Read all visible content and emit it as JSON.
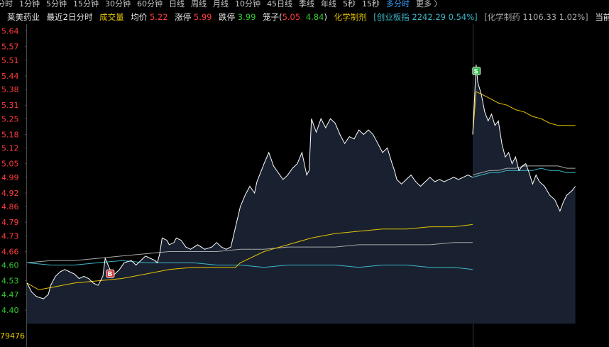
{
  "tabs": [
    {
      "label": "分时",
      "active": false
    },
    {
      "label": "1分钟",
      "active": false
    },
    {
      "label": "5分钟",
      "active": false
    },
    {
      "label": "15分钟",
      "active": false
    },
    {
      "label": "30分钟",
      "active": false
    },
    {
      "label": "60分钟",
      "active": false
    },
    {
      "label": "日线",
      "active": false
    },
    {
      "label": "周线",
      "active": false
    },
    {
      "label": "月线",
      "active": false
    },
    {
      "label": "10分钟",
      "active": false
    },
    {
      "label": "45日线",
      "active": false
    },
    {
      "label": "季线",
      "active": false
    },
    {
      "label": "年线",
      "active": false
    },
    {
      "label": "5秒",
      "active": false
    },
    {
      "label": "15秒",
      "active": false
    },
    {
      "label": "多分时",
      "active": true
    },
    {
      "label": "更多 〉",
      "active": false
    }
  ],
  "info": {
    "stock_name": "莱美药业",
    "period": "最近2日分时",
    "volume_label": "成交量",
    "avg_label": "均价",
    "avg_value": "5.22",
    "limit_up_label": "涨停",
    "limit_up_value": "5.99",
    "limit_down_label": "跌停",
    "limit_down_value": "3.99",
    "cage_label": "笼子(",
    "cage_high": "5.05",
    "cage_low": "4.84",
    "cage_close": ")",
    "sector": "化学制剂",
    "index_text": "[创业板指 2242.29 0.54%]",
    "sector_text": "[化学制药 1106.33 1.02%]",
    "account_label": "当前账户"
  },
  "chart_data": {
    "type": "line",
    "title": "",
    "xlabel": "",
    "ylabel": "",
    "ylim": [
      4.34,
      5.67
    ],
    "prev_close": 4.61,
    "yticks": [
      "5.64",
      "5.57",
      "5.51",
      "5.44",
      "5.38",
      "5.31",
      "5.25",
      "5.18",
      "5.12",
      "5.05",
      "4.99",
      "4.92",
      "4.86",
      "4.79",
      "4.73",
      "4.66",
      "4.60",
      "4.53",
      "4.47",
      "4.40"
    ],
    "bottom_label": "79476",
    "grid": false,
    "legend": "none",
    "colors": {
      "price": "#ffffff",
      "avg": "#e6c300",
      "index": "#3bb8c9",
      "sector": "#a8a8a8",
      "up": "#ff3c3c",
      "down": "#34c934",
      "flat": "#e8e8e8",
      "fill": "#1a2333"
    },
    "days": [
      {
        "price": [
          [
            0,
            4.52
          ],
          [
            0.02,
            4.48
          ],
          [
            0.04,
            4.46
          ],
          [
            0.07,
            4.45
          ],
          [
            0.09,
            4.47
          ],
          [
            0.1,
            4.51
          ],
          [
            0.12,
            4.55
          ],
          [
            0.14,
            4.57
          ],
          [
            0.16,
            4.58
          ],
          [
            0.18,
            4.57
          ],
          [
            0.2,
            4.56
          ],
          [
            0.22,
            4.54
          ],
          [
            0.24,
            4.55
          ],
          [
            0.26,
            4.54
          ],
          [
            0.28,
            4.52
          ],
          [
            0.3,
            4.51
          ],
          [
            0.32,
            4.55
          ],
          [
            0.33,
            4.63
          ],
          [
            0.35,
            4.58
          ],
          [
            0.37,
            4.56
          ],
          [
            0.39,
            4.58
          ],
          [
            0.41,
            4.61
          ],
          [
            0.44,
            4.62
          ],
          [
            0.46,
            4.6
          ],
          [
            0.48,
            4.62
          ],
          [
            0.5,
            4.64
          ],
          [
            0.52,
            4.63
          ],
          [
            0.54,
            4.62
          ],
          [
            0.55,
            4.61
          ],
          [
            0.56,
            4.65
          ],
          [
            0.57,
            4.72
          ],
          [
            0.59,
            4.71
          ],
          [
            0.6,
            4.69
          ],
          [
            0.62,
            4.7
          ],
          [
            0.63,
            4.72
          ],
          [
            0.65,
            4.71
          ],
          [
            0.67,
            4.68
          ],
          [
            0.69,
            4.67
          ],
          [
            0.72,
            4.69
          ],
          [
            0.75,
            4.67
          ],
          [
            0.78,
            4.68
          ],
          [
            0.8,
            4.7
          ],
          [
            0.82,
            4.68
          ],
          [
            0.84,
            4.67
          ],
          [
            0.86,
            4.68
          ],
          [
            0.88,
            4.77
          ],
          [
            0.9,
            4.86
          ],
          [
            0.92,
            4.91
          ],
          [
            0.94,
            4.95
          ],
          [
            0.96,
            4.92
          ],
          [
            0.97,
            4.97
          ],
          [
            1.0,
            5.05
          ],
          [
            1.02,
            5.1
          ],
          [
            1.04,
            5.04
          ],
          [
            1.06,
            5.01
          ],
          [
            1.08,
            4.98
          ],
          [
            1.1,
            5.0
          ],
          [
            1.12,
            5.03
          ],
          [
            1.14,
            5.05
          ],
          [
            1.16,
            5.1
          ],
          [
            1.18,
            5.0
          ],
          [
            1.19,
            5.02
          ],
          [
            1.2,
            5.25
          ],
          [
            1.22,
            5.19
          ],
          [
            1.24,
            5.25
          ],
          [
            1.26,
            5.21
          ],
          [
            1.28,
            5.25
          ],
          [
            1.3,
            5.23
          ],
          [
            1.32,
            5.18
          ],
          [
            1.34,
            5.14
          ],
          [
            1.36,
            5.17
          ],
          [
            1.38,
            5.16
          ],
          [
            1.4,
            5.2
          ],
          [
            1.42,
            5.18
          ],
          [
            1.44,
            5.2
          ],
          [
            1.46,
            5.18
          ],
          [
            1.48,
            5.14
          ],
          [
            1.5,
            5.1
          ],
          [
            1.52,
            5.12
          ],
          [
            1.54,
            5.05
          ],
          [
            1.55,
            5.02
          ],
          [
            1.56,
            4.98
          ],
          [
            1.58,
            4.96
          ],
          [
            1.6,
            4.98
          ],
          [
            1.62,
            5.0
          ],
          [
            1.64,
            4.97
          ],
          [
            1.66,
            4.95
          ],
          [
            1.68,
            4.97
          ],
          [
            1.7,
            4.99
          ],
          [
            1.72,
            4.97
          ],
          [
            1.74,
            4.98
          ],
          [
            1.76,
            4.97
          ],
          [
            1.78,
            4.98
          ],
          [
            1.8,
            4.99
          ],
          [
            1.82,
            4.98
          ],
          [
            1.84,
            4.99
          ],
          [
            1.86,
            5.0
          ],
          [
            1.88,
            4.99
          ]
        ],
        "avg": [
          [
            0,
            4.52
          ],
          [
            0.05,
            4.49
          ],
          [
            0.1,
            4.5
          ],
          [
            0.2,
            4.52
          ],
          [
            0.3,
            4.53
          ],
          [
            0.4,
            4.54
          ],
          [
            0.5,
            4.56
          ],
          [
            0.6,
            4.58
          ],
          [
            0.7,
            4.59
          ],
          [
            0.8,
            4.59
          ],
          [
            0.88,
            4.59
          ],
          [
            0.9,
            4.61
          ],
          [
            1.0,
            4.66
          ],
          [
            1.1,
            4.69
          ],
          [
            1.2,
            4.72
          ],
          [
            1.3,
            4.74
          ],
          [
            1.4,
            4.75
          ],
          [
            1.5,
            4.76
          ],
          [
            1.6,
            4.76
          ],
          [
            1.7,
            4.77
          ],
          [
            1.8,
            4.77
          ],
          [
            1.88,
            4.78
          ]
        ],
        "index": [
          [
            0,
            4.61
          ],
          [
            0.1,
            4.6
          ],
          [
            0.2,
            4.6
          ],
          [
            0.3,
            4.61
          ],
          [
            0.4,
            4.62
          ],
          [
            0.5,
            4.61
          ],
          [
            0.6,
            4.61
          ],
          [
            0.7,
            4.61
          ],
          [
            0.8,
            4.6
          ],
          [
            0.9,
            4.6
          ],
          [
            1.0,
            4.59
          ],
          [
            1.1,
            4.6
          ],
          [
            1.2,
            4.6
          ],
          [
            1.3,
            4.6
          ],
          [
            1.4,
            4.59
          ],
          [
            1.5,
            4.6
          ],
          [
            1.6,
            4.6
          ],
          [
            1.7,
            4.59
          ],
          [
            1.8,
            4.59
          ],
          [
            1.88,
            4.58
          ]
        ],
        "sector": [
          [
            0,
            4.61
          ],
          [
            0.1,
            4.62
          ],
          [
            0.2,
            4.62
          ],
          [
            0.3,
            4.63
          ],
          [
            0.4,
            4.64
          ],
          [
            0.5,
            4.65
          ],
          [
            0.6,
            4.66
          ],
          [
            0.7,
            4.66
          ],
          [
            0.8,
            4.66
          ],
          [
            0.9,
            4.67
          ],
          [
            1.0,
            4.67
          ],
          [
            1.1,
            4.68
          ],
          [
            1.2,
            4.68
          ],
          [
            1.3,
            4.68
          ],
          [
            1.4,
            4.69
          ],
          [
            1.5,
            4.69
          ],
          [
            1.6,
            4.69
          ],
          [
            1.7,
            4.69
          ],
          [
            1.8,
            4.7
          ],
          [
            1.88,
            4.7
          ]
        ]
      },
      {
        "price": [
          [
            0,
            5.18
          ],
          [
            0.01,
            5.33
          ],
          [
            0.02,
            5.49
          ],
          [
            0.03,
            5.41
          ],
          [
            0.05,
            5.36
          ],
          [
            0.07,
            5.28
          ],
          [
            0.09,
            5.24
          ],
          [
            0.11,
            5.27
          ],
          [
            0.13,
            5.22
          ],
          [
            0.15,
            5.24
          ],
          [
            0.17,
            5.14
          ],
          [
            0.19,
            5.08
          ],
          [
            0.21,
            5.1
          ],
          [
            0.23,
            5.05
          ],
          [
            0.25,
            5.08
          ],
          [
            0.27,
            5.02
          ],
          [
            0.29,
            5.04
          ],
          [
            0.31,
            5.05
          ],
          [
            0.33,
            5.01
          ],
          [
            0.35,
            4.96
          ],
          [
            0.37,
            5.0
          ],
          [
            0.39,
            4.97
          ],
          [
            0.42,
            4.95
          ],
          [
            0.45,
            4.91
          ],
          [
            0.48,
            4.89
          ],
          [
            0.51,
            4.84
          ],
          [
            0.53,
            4.88
          ],
          [
            0.55,
            4.91
          ],
          [
            0.58,
            4.93
          ],
          [
            0.6,
            4.95
          ]
        ],
        "avg": [
          [
            0,
            5.18
          ],
          [
            0.02,
            5.37
          ],
          [
            0.05,
            5.36
          ],
          [
            0.1,
            5.34
          ],
          [
            0.15,
            5.32
          ],
          [
            0.2,
            5.31
          ],
          [
            0.25,
            5.29
          ],
          [
            0.3,
            5.28
          ],
          [
            0.35,
            5.26
          ],
          [
            0.4,
            5.25
          ],
          [
            0.45,
            5.23
          ],
          [
            0.5,
            5.22
          ],
          [
            0.55,
            5.22
          ],
          [
            0.6,
            5.22
          ]
        ],
        "index": [
          [
            0,
            4.99
          ],
          [
            0.05,
            5.0
          ],
          [
            0.1,
            5.01
          ],
          [
            0.15,
            5.01
          ],
          [
            0.2,
            5.02
          ],
          [
            0.25,
            5.02
          ],
          [
            0.3,
            5.02
          ],
          [
            0.35,
            5.02
          ],
          [
            0.4,
            5.03
          ],
          [
            0.45,
            5.02
          ],
          [
            0.5,
            5.02
          ],
          [
            0.55,
            5.01
          ],
          [
            0.6,
            5.01
          ]
        ],
        "sector": [
          [
            0,
            5.0
          ],
          [
            0.05,
            5.01
          ],
          [
            0.1,
            5.02
          ],
          [
            0.15,
            5.02
          ],
          [
            0.2,
            5.03
          ],
          [
            0.25,
            5.03
          ],
          [
            0.3,
            5.04
          ],
          [
            0.35,
            5.04
          ],
          [
            0.4,
            5.04
          ],
          [
            0.45,
            5.04
          ],
          [
            0.5,
            5.04
          ],
          [
            0.55,
            5.03
          ],
          [
            0.6,
            5.03
          ]
        ]
      }
    ],
    "markers": [
      {
        "label": "B",
        "day": 0,
        "x": 0.35,
        "price": 4.56,
        "kind": "buy"
      },
      {
        "label": "S",
        "day": 1,
        "x": 0.02,
        "price": 5.46,
        "kind": "sell"
      }
    ]
  }
}
